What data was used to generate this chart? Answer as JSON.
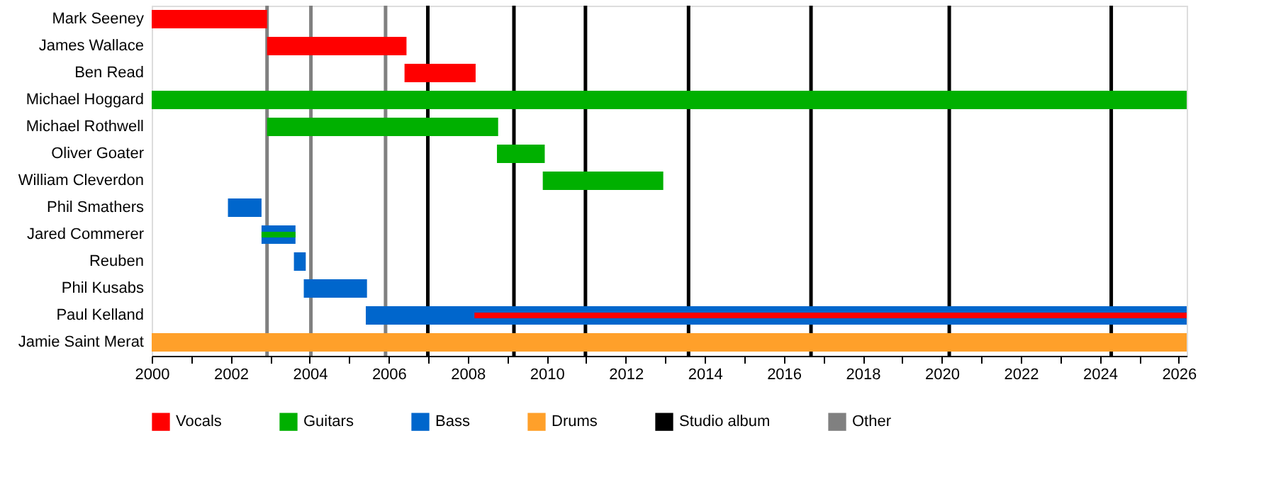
{
  "chart_data": {
    "type": "bar",
    "orientation": "horizontal",
    "categories": [
      "Mark Seeney",
      "James Wallace",
      "Ben Read",
      "Michael Hoggard",
      "Michael Rothwell",
      "Oliver Goater",
      "William Cleverdon",
      "Phil Smathers",
      "Jared Commerer",
      "Reuben",
      "Phil Kusabs",
      "Paul Kelland",
      "Jamie Saint Merat"
    ],
    "series": [
      {
        "name": "Vocals",
        "color": "#ff0000",
        "values": [
          2.92,
          3.53,
          1.8,
          null,
          null,
          null,
          null,
          null,
          null,
          null,
          null,
          18.03,
          null
        ],
        "base": [
          2000,
          2002.92,
          2006.4,
          null,
          null,
          null,
          null,
          null,
          null,
          null,
          null,
          2008.17,
          null
        ]
      },
      {
        "name": "Guitars",
        "color": "#00b000",
        "values": [
          null,
          null,
          null,
          26.2,
          5.85,
          1.21,
          3.05,
          null,
          0.86,
          null,
          null,
          null,
          null
        ],
        "base": [
          null,
          null,
          null,
          2000,
          2002.92,
          2008.74,
          2009.9,
          null,
          2002.78,
          null,
          null,
          null,
          null
        ]
      },
      {
        "name": "Bass",
        "color": "#0066cc",
        "values": [
          null,
          null,
          null,
          null,
          null,
          null,
          null,
          0.85,
          0.86,
          0.3,
          1.6,
          20.78,
          null
        ],
        "base": [
          null,
          null,
          null,
          null,
          null,
          null,
          null,
          2001.93,
          2002.78,
          2003.6,
          2003.85,
          2005.42,
          null
        ]
      },
      {
        "name": "Drums",
        "color": "#ffa02a",
        "values": [
          null,
          null,
          null,
          null,
          null,
          null,
          null,
          null,
          null,
          null,
          null,
          null,
          26.2
        ],
        "base": [
          null,
          null,
          null,
          null,
          null,
          null,
          null,
          null,
          null,
          null,
          null,
          null,
          2000
        ]
      }
    ],
    "xlim": [
      2000,
      2026.2
    ],
    "xticks": [
      2000,
      {
        "value": 2001,
        "label": null
      },
      2002,
      {
        "value": 2003,
        "label": null
      },
      2004,
      {
        "value": 2005,
        "label": null
      },
      2006,
      {
        "value": 2007,
        "label": null
      },
      2008,
      {
        "value": 2009,
        "label": null
      },
      2010,
      {
        "value": 2011,
        "label": null
      },
      2012,
      {
        "value": 2013,
        "label": null
      },
      2014,
      {
        "value": 2015,
        "label": null
      },
      2016,
      {
        "value": 2017,
        "label": null
      },
      2018,
      {
        "value": 2019,
        "label": null
      },
      2020,
      {
        "value": 2021,
        "label": null
      },
      2022,
      {
        "value": 2023,
        "label": null
      },
      2024,
      {
        "value": 2025,
        "label": null
      },
      2026
    ],
    "ref_lines": [
      {
        "axis": "x",
        "value": 2006.99,
        "label": "Studio album",
        "color": "#000000"
      },
      {
        "axis": "x",
        "value": 2009.17,
        "color": "#000000"
      },
      {
        "axis": "x",
        "value": 2010.98,
        "color": "#000000"
      },
      {
        "axis": "x",
        "value": 2013.59,
        "color": "#000000"
      },
      {
        "axis": "x",
        "value": 2016.69,
        "color": "#000000"
      },
      {
        "axis": "x",
        "value": 2020.19,
        "color": "#000000"
      },
      {
        "axis": "x",
        "value": 2024.29,
        "color": "#000000"
      },
      {
        "axis": "x",
        "value": 2002.92,
        "label": "Other",
        "color": "#808080"
      },
      {
        "axis": "x",
        "value": 2004.03,
        "color": "#808080"
      },
      {
        "axis": "x",
        "value": 2005.92,
        "color": "#808080"
      }
    ],
    "grid": false,
    "legend": "bottom"
  }
}
